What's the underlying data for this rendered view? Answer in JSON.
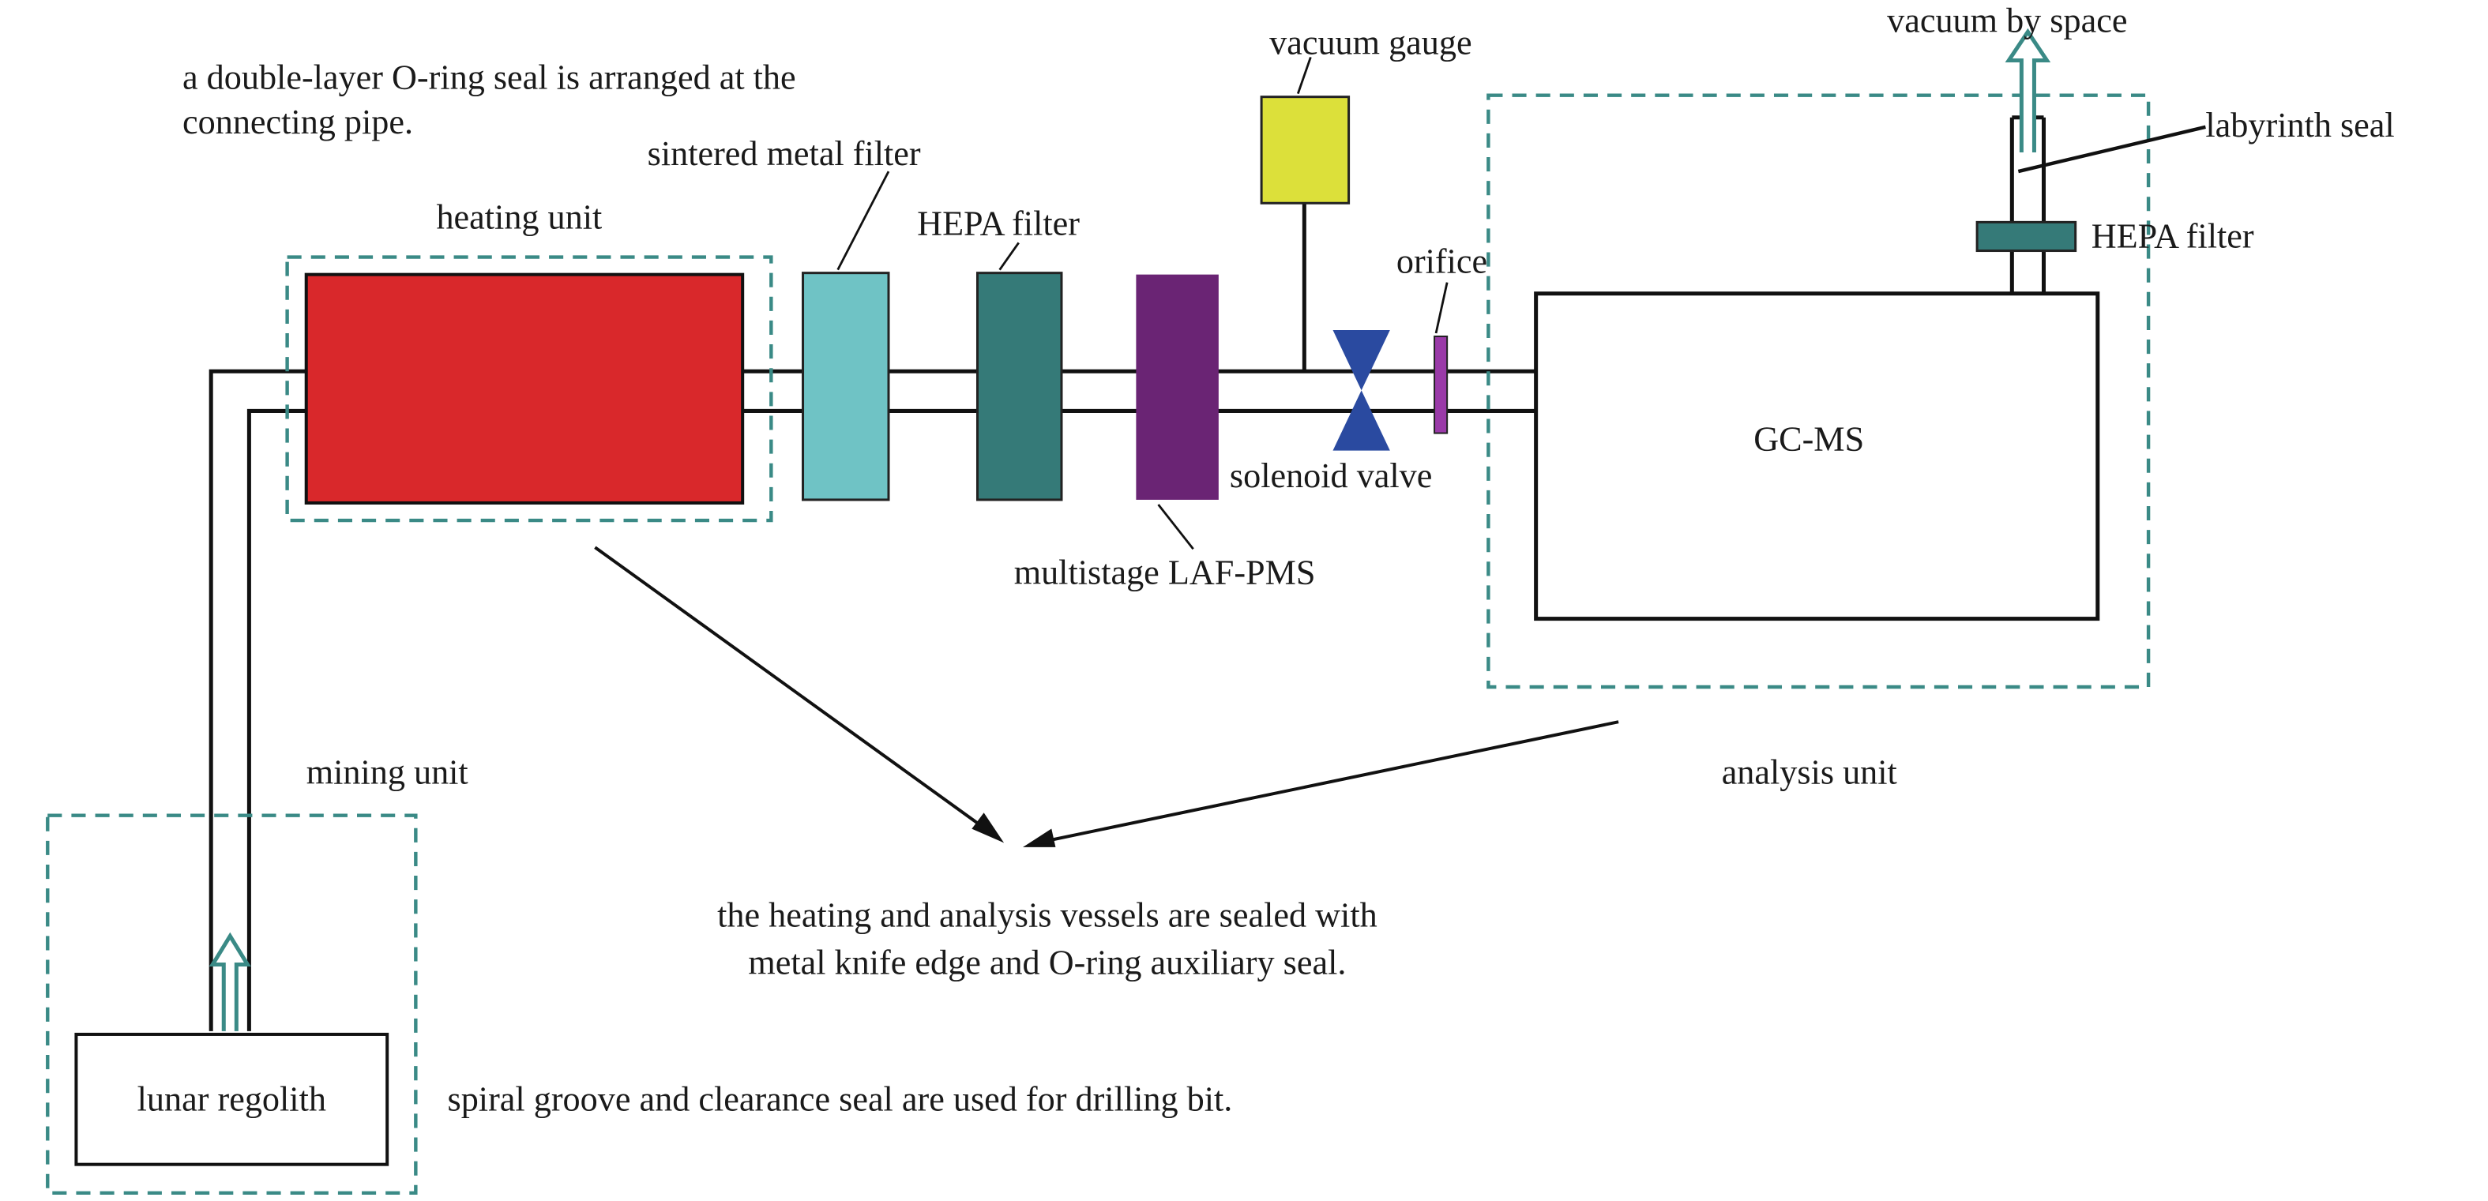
{
  "notes": {
    "oring": [
      "a double-layer O-ring seal is arranged at the",
      "connecting pipe."
    ],
    "vessels": [
      "the heating and analysis vessels are sealed with",
      "metal knife edge and O-ring auxiliary seal."
    ],
    "drill": "spiral groove and clearance seal are used for drilling bit."
  },
  "units": {
    "heating": "heating unit",
    "mining": "mining unit",
    "analysis": "analysis unit"
  },
  "components": {
    "sintered": {
      "label": "sintered metal filter",
      "color": "#6fc3c5"
    },
    "hepa": {
      "label": "HEPA filter",
      "color": "#357a78"
    },
    "laf": {
      "label": "multistage LAF-PMS",
      "color": "#6a2474"
    },
    "gauge": {
      "label": "vacuum gauge",
      "color": "#dce03a"
    },
    "valve": {
      "label": "solenoid valve",
      "color": "#2a4aa0"
    },
    "orifice": {
      "label": "orifice",
      "color": "#9a3aa8"
    },
    "gcms": {
      "label": "GC-MS"
    },
    "hepa2": {
      "label": "HEPA filter"
    },
    "labyrinth": {
      "label": "labyrinth seal"
    },
    "vacuum": {
      "label": "vacuum by space"
    },
    "regolith": {
      "label": "lunar regolith"
    },
    "heater": {
      "color": "#d9282b"
    }
  },
  "colors": {
    "dashed_box": "#3a8a86",
    "arrow": "#3a8a86"
  }
}
